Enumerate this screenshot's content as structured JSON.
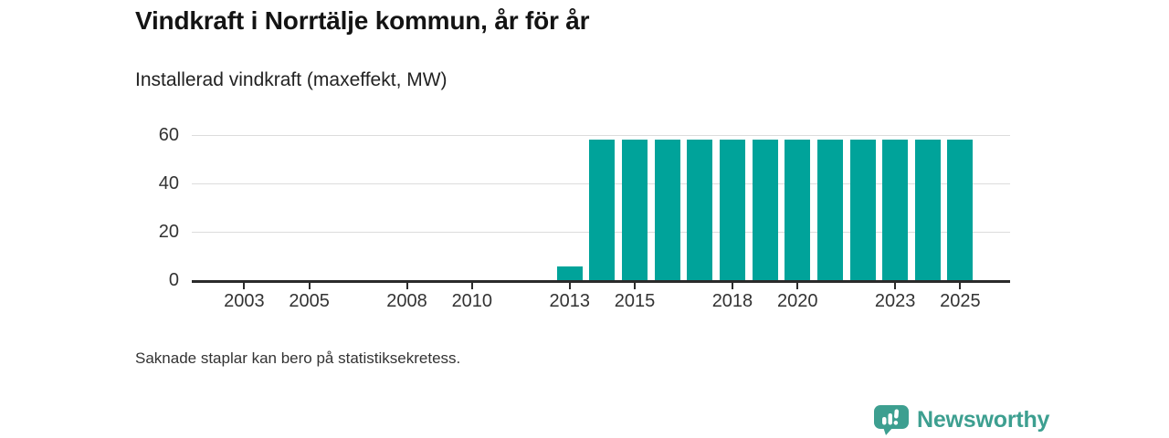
{
  "header": {
    "title": "Vindkraft i Norrtälje kommun, år för år",
    "subtitle": "Installerad vindkraft (maxeffekt, MW)"
  },
  "footnote": "Saknade staplar kan bero på statistiksekretess.",
  "branding": {
    "name": "Newsworthy",
    "icon": "bar-chart-speech-bubble-icon",
    "color": "#3d9f90"
  },
  "chart_data": {
    "type": "bar",
    "title": "Vindkraft i Norrtälje kommun, år för år",
    "subtitle": "Installerad vindkraft (maxeffekt, MW)",
    "xlabel": "",
    "ylabel": "Installerad vindkraft (maxeffekt, MW)",
    "categories": [
      2002,
      2003,
      2004,
      2005,
      2006,
      2007,
      2008,
      2009,
      2010,
      2011,
      2012,
      2013,
      2014,
      2015,
      2016,
      2017,
      2018,
      2019,
      2020,
      2021,
      2022,
      2023,
      2024,
      2025
    ],
    "values": [
      null,
      null,
      null,
      null,
      null,
      null,
      null,
      null,
      null,
      null,
      null,
      5.5,
      58,
      58,
      58,
      58,
      58,
      58,
      58,
      58,
      58,
      58,
      58,
      58
    ],
    "x_tick_labels": [
      "2003",
      "2005",
      "2008",
      "2010",
      "2013",
      "2015",
      "2018",
      "2020",
      "2023",
      "2025"
    ],
    "y_ticks": [
      0,
      20,
      40,
      60
    ],
    "ylim": [
      0,
      63
    ],
    "bar_color": "#00a39a",
    "gridline_color": "#dcdcdc",
    "axis_color": "#2b2b2b",
    "grid": "horizontal",
    "legend": "none",
    "note": "Saknade staplar kan bero på statistiksekretess."
  }
}
